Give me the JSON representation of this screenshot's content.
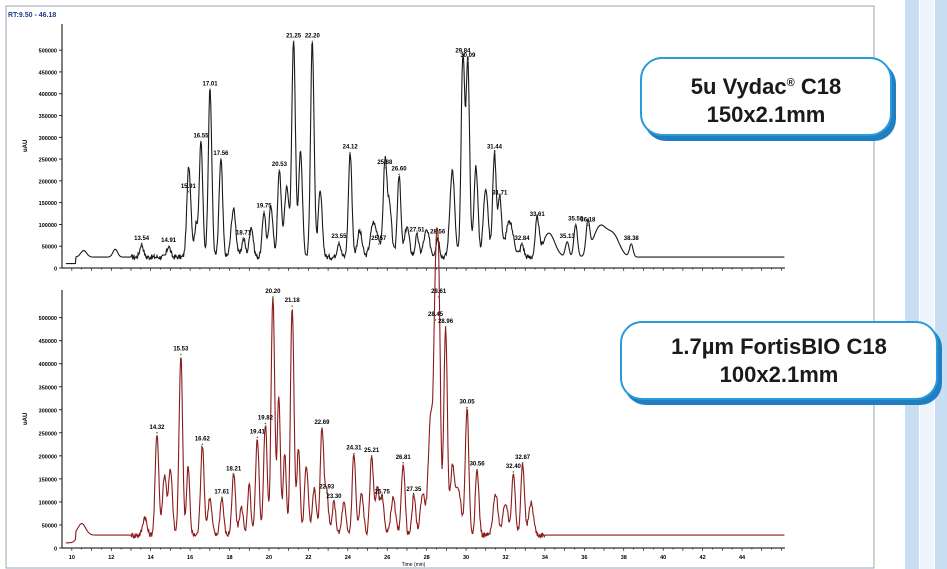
{
  "header": {
    "rt_label": "RT:9.50 - 46.18"
  },
  "callouts": {
    "top": {
      "line1_a": "5u Vydac",
      "line1_reg": "®",
      "line1_b": " C18",
      "line2": "150x2.1mm"
    },
    "bottom": {
      "line1": "1.7µm FortisBIO C18",
      "line2": "100x2.1mm"
    }
  },
  "chart_data": [
    {
      "type": "line",
      "ylabel": "uAU",
      "ylim": [
        0,
        560000
      ],
      "xlim": [
        9.5,
        46.18
      ],
      "yticks": [
        0,
        50000,
        100000,
        150000,
        200000,
        250000,
        300000,
        350000,
        400000,
        450000,
        500000
      ],
      "line_color": "#1a1a1a",
      "baseline": 25000,
      "peaks": [
        {
          "label": "13.54",
          "x": 13.54,
          "y": 55000
        },
        {
          "label": "14.91",
          "x": 14.91,
          "y": 50000
        },
        {
          "label": "15.91",
          "x": 15.91,
          "y": 175000
        },
        {
          "label": "16.55",
          "x": 16.55,
          "y": 290000
        },
        {
          "label": "17.01",
          "x": 17.01,
          "y": 410000
        },
        {
          "label": "17.56",
          "x": 17.56,
          "y": 250000
        },
        {
          "label": "18.71",
          "x": 18.71,
          "y": 68000
        },
        {
          "label": "19.75",
          "x": 19.75,
          "y": 130000
        },
        {
          "label": "20.53",
          "x": 20.53,
          "y": 225000
        },
        {
          "label": "21.25",
          "x": 21.25,
          "y": 520000
        },
        {
          "label": "22.20",
          "x": 22.2,
          "y": 520000
        },
        {
          "label": "23.55",
          "x": 23.55,
          "y": 60000
        },
        {
          "label": "24.12",
          "x": 24.12,
          "y": 265000
        },
        {
          "label": "25.57",
          "x": 25.57,
          "y": 55000
        },
        {
          "label": "25.88",
          "x": 25.88,
          "y": 230000
        },
        {
          "label": "26.60",
          "x": 26.6,
          "y": 215000
        },
        {
          "label": "27.51",
          "x": 27.51,
          "y": 75000
        },
        {
          "label": "28.56",
          "x": 28.56,
          "y": 70000
        },
        {
          "label": "29.84",
          "x": 29.84,
          "y": 485000
        },
        {
          "label": "30.09",
          "x": 30.09,
          "y": 475000
        },
        {
          "label": "31.44",
          "x": 31.44,
          "y": 265000
        },
        {
          "label": "31.71",
          "x": 31.71,
          "y": 160000
        },
        {
          "label": "32.84",
          "x": 32.84,
          "y": 55000
        },
        {
          "label": "33.61",
          "x": 33.61,
          "y": 110000
        },
        {
          "label": "35.13",
          "x": 35.13,
          "y": 60000
        },
        {
          "label": "35.56",
          "x": 35.56,
          "y": 100000
        },
        {
          "label": "36.18",
          "x": 36.18,
          "y": 98000
        },
        {
          "label": "38.38",
          "x": 38.38,
          "y": 55000
        }
      ]
    },
    {
      "type": "line",
      "ylabel": "uAU",
      "ylim": [
        0,
        560000
      ],
      "xlim": [
        9.5,
        46.18
      ],
      "xlabel": "Time (min)",
      "yticks": [
        0,
        50000,
        100000,
        150000,
        200000,
        250000,
        300000,
        350000,
        400000,
        450000,
        500000
      ],
      "xticks": [
        10,
        12,
        14,
        16,
        18,
        20,
        22,
        24,
        26,
        28,
        30,
        32,
        34,
        36,
        38,
        40,
        42,
        44
      ],
      "line_color": "#8b1a1a",
      "baseline": 28000,
      "peaks": [
        {
          "label": "14.32",
          "x": 14.32,
          "y": 250000
        },
        {
          "label": "15.53",
          "x": 15.53,
          "y": 420000
        },
        {
          "label": "16.62",
          "x": 16.62,
          "y": 225000
        },
        {
          "label": "17.61",
          "x": 17.61,
          "y": 110000
        },
        {
          "label": "18.21",
          "x": 18.21,
          "y": 160000
        },
        {
          "label": "19.41",
          "x": 19.41,
          "y": 240000
        },
        {
          "label": "19.82",
          "x": 19.82,
          "y": 270000
        },
        {
          "label": "20.20",
          "x": 20.2,
          "y": 545000
        },
        {
          "label": "21.18",
          "x": 21.18,
          "y": 525000
        },
        {
          "label": "22.69",
          "x": 22.69,
          "y": 260000
        },
        {
          "label": "22.93",
          "x": 22.93,
          "y": 120000
        },
        {
          "label": "23.30",
          "x": 23.3,
          "y": 100000
        },
        {
          "label": "24.31",
          "x": 24.31,
          "y": 205000
        },
        {
          "label": "25.21",
          "x": 25.21,
          "y": 200000
        },
        {
          "label": "25.75",
          "x": 25.75,
          "y": 110000
        },
        {
          "label": "26.81",
          "x": 26.81,
          "y": 185000
        },
        {
          "label": "27.35",
          "x": 27.35,
          "y": 115000
        },
        {
          "label": "28.45",
          "x": 28.45,
          "y": 495000
        },
        {
          "label": "28.61",
          "x": 28.61,
          "y": 545000
        },
        {
          "label": "28.96",
          "x": 28.96,
          "y": 480000
        },
        {
          "label": "30.05",
          "x": 30.05,
          "y": 305000
        },
        {
          "label": "30.56",
          "x": 30.56,
          "y": 170000
        },
        {
          "label": "32.40",
          "x": 32.4,
          "y": 165000
        },
        {
          "label": "32.87",
          "x": 32.87,
          "y": 185000
        }
      ]
    }
  ]
}
